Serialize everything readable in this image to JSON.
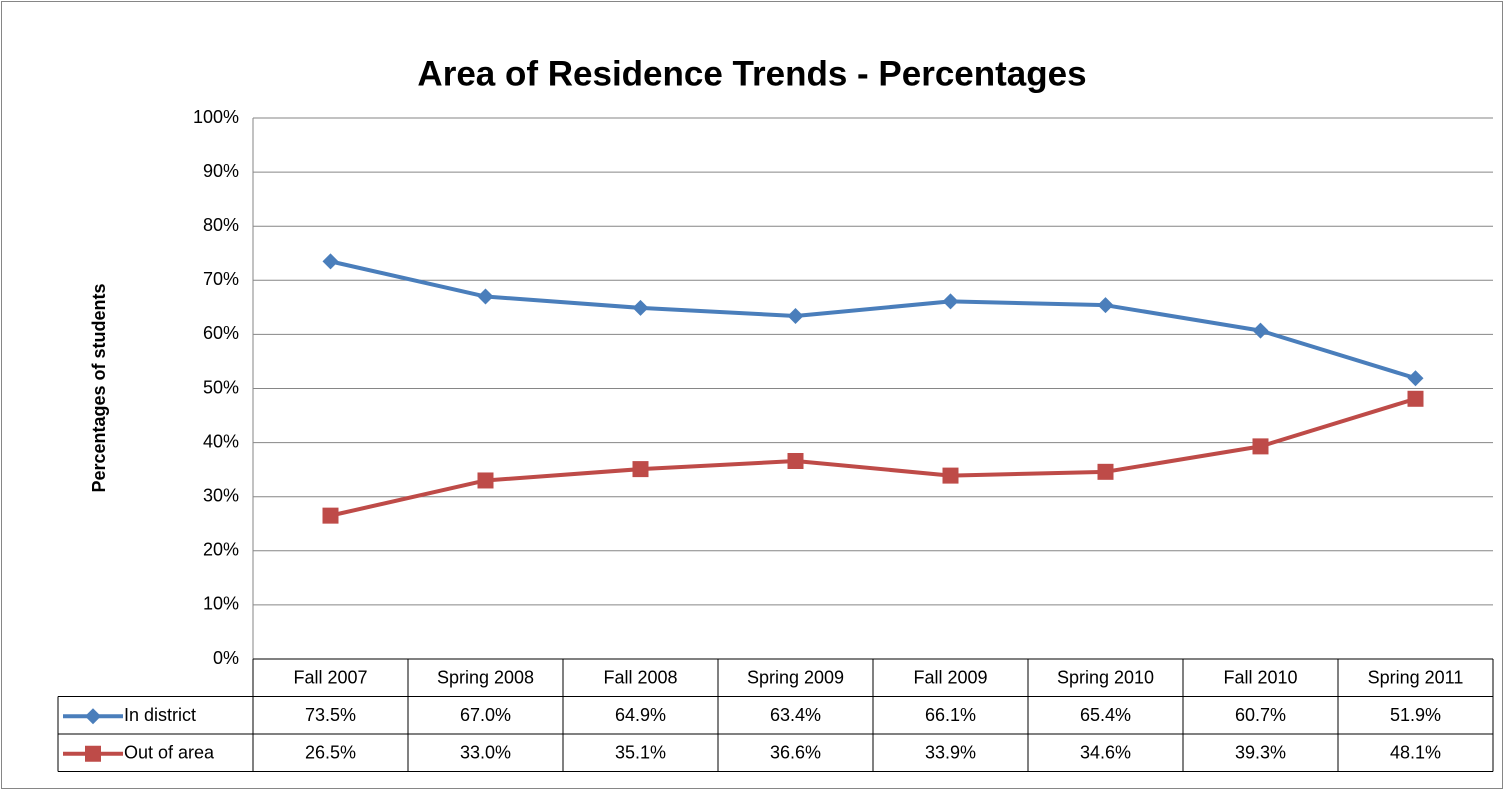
{
  "chart_data": {
    "type": "line",
    "title": "Area of Residence Trends - Percentages",
    "y_label": "Percentages of students",
    "categories": [
      "Fall 2007",
      "Spring 2008",
      "Fall 2008",
      "Spring 2009",
      "Fall 2009",
      "Spring 2010",
      "Fall 2010",
      "Spring 2011"
    ],
    "series": [
      {
        "name": "In district",
        "color": "#4a7ebb",
        "marker": "diamond",
        "values": [
          73.5,
          67.0,
          64.9,
          63.4,
          66.1,
          65.4,
          60.7,
          51.9
        ],
        "value_labels": [
          "73.5%",
          "67.0%",
          "64.9%",
          "63.4%",
          "66.1%",
          "65.4%",
          "60.7%",
          "51.9%"
        ]
      },
      {
        "name": "Out of area",
        "color": "#be4b48",
        "marker": "square",
        "values": [
          26.5,
          33.0,
          35.1,
          36.6,
          33.9,
          34.6,
          39.3,
          48.1
        ],
        "value_labels": [
          "26.5%",
          "33.0%",
          "35.1%",
          "36.6%",
          "33.9%",
          "34.6%",
          "39.3%",
          "48.1%"
        ]
      }
    ],
    "ylim": [
      0,
      100
    ],
    "yticks": [
      {
        "value": 0,
        "label": "0%"
      },
      {
        "value": 10,
        "label": "10%"
      },
      {
        "value": 20,
        "label": "20%"
      },
      {
        "value": 30,
        "label": "30%"
      },
      {
        "value": 40,
        "label": "40%"
      },
      {
        "value": 50,
        "label": "50%"
      },
      {
        "value": 60,
        "label": "60%"
      },
      {
        "value": 70,
        "label": "70%"
      },
      {
        "value": 80,
        "label": "80%"
      },
      {
        "value": 90,
        "label": "90%"
      },
      {
        "value": 100,
        "label": "100%"
      }
    ],
    "grid": true,
    "legend": "data-table"
  }
}
